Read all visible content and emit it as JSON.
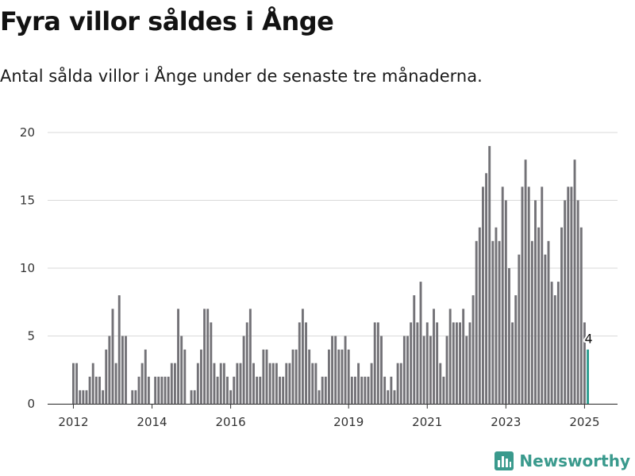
{
  "header": {
    "title": "Fyra villor såldes i Ånge",
    "subtitle": "Antal sålda villor i Ånge under de senaste tre månaderna."
  },
  "brand": {
    "name": "Newsworthy",
    "icon": "chart-logo-icon",
    "color": "#3a9a8d"
  },
  "colors": {
    "bar": "#737277",
    "highlight": "#2a9d8f",
    "grid": "#d9d9d9"
  },
  "chart_data": {
    "type": "bar",
    "start": "2012-01",
    "values": [
      3,
      3,
      1,
      1,
      1,
      2,
      3,
      2,
      2,
      1,
      4,
      5,
      7,
      3,
      8,
      5,
      5,
      0,
      1,
      1,
      2,
      3,
      4,
      2,
      0,
      2,
      2,
      2,
      2,
      2,
      3,
      3,
      7,
      5,
      4,
      0,
      1,
      1,
      3,
      4,
      7,
      7,
      6,
      3,
      2,
      3,
      3,
      2,
      1,
      2,
      3,
      3,
      5,
      6,
      7,
      3,
      2,
      2,
      4,
      4,
      3,
      3,
      3,
      2,
      2,
      3,
      3,
      4,
      4,
      6,
      7,
      6,
      4,
      3,
      3,
      1,
      2,
      2,
      4,
      5,
      5,
      4,
      4,
      5,
      4,
      2,
      2,
      3,
      2,
      2,
      2,
      3,
      6,
      6,
      5,
      2,
      1,
      2,
      1,
      3,
      3,
      5,
      5,
      6,
      8,
      6,
      9,
      5,
      6,
      5,
      7,
      6,
      3,
      2,
      5,
      7,
      6,
      6,
      6,
      7,
      5,
      6,
      8,
      12,
      13,
      16,
      17,
      19,
      12,
      13,
      12,
      16,
      15,
      10,
      6,
      8,
      11,
      16,
      18,
      16,
      12,
      15,
      13,
      16,
      11,
      12,
      9,
      8,
      9,
      13,
      15,
      16,
      16,
      18,
      15,
      13,
      6,
      4
    ],
    "highlight_last": true,
    "last_value_label": "4",
    "x_ticks": [
      "2012",
      "2014",
      "2016",
      "2019",
      "2021",
      "2023",
      "2025"
    ],
    "y_ticks": [
      0,
      5,
      10,
      15,
      20
    ],
    "ylim": [
      0,
      20
    ],
    "grid": true,
    "xlabel": "",
    "ylabel": ""
  }
}
